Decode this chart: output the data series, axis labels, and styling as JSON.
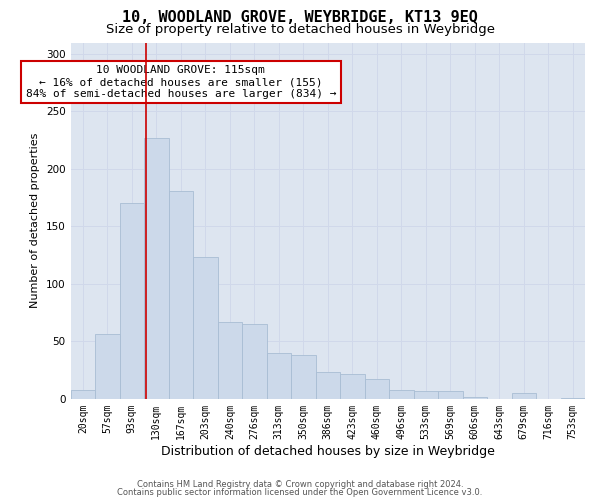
{
  "title": "10, WOODLAND GROVE, WEYBRIDGE, KT13 9EQ",
  "subtitle": "Size of property relative to detached houses in Weybridge",
  "xlabel": "Distribution of detached houses by size in Weybridge",
  "ylabel": "Number of detached properties",
  "bin_labels": [
    "20sqm",
    "57sqm",
    "93sqm",
    "130sqm",
    "167sqm",
    "203sqm",
    "240sqm",
    "276sqm",
    "313sqm",
    "350sqm",
    "386sqm",
    "423sqm",
    "460sqm",
    "496sqm",
    "533sqm",
    "569sqm",
    "606sqm",
    "643sqm",
    "679sqm",
    "716sqm",
    "753sqm"
  ],
  "bar_heights": [
    8,
    56,
    170,
    227,
    181,
    123,
    67,
    65,
    40,
    38,
    23,
    22,
    17,
    8,
    7,
    7,
    2,
    0,
    5,
    0,
    1
  ],
  "bar_color": "#ccd9ea",
  "bar_edge_color": "#a8bdd4",
  "vline_color": "#cc0000",
  "annotation_text": "10 WOODLAND GROVE: 115sqm\n← 16% of detached houses are smaller (155)\n84% of semi-detached houses are larger (834) →",
  "annotation_box_facecolor": "#ffffff",
  "annotation_box_edgecolor": "#cc0000",
  "footer1": "Contains HM Land Registry data © Crown copyright and database right 2024.",
  "footer2": "Contains public sector information licensed under the Open Government Licence v3.0.",
  "ylim": [
    0,
    310
  ],
  "yticks": [
    0,
    50,
    100,
    150,
    200,
    250,
    300
  ],
  "grid_color": "#d0d8ea",
  "background_color": "#dde5f0",
  "title_fontsize": 11,
  "subtitle_fontsize": 9.5,
  "tick_fontsize": 7,
  "ylabel_fontsize": 8,
  "xlabel_fontsize": 9,
  "footer_fontsize": 6,
  "annotation_fontsize": 8,
  "vline_x_index": 2.595
}
